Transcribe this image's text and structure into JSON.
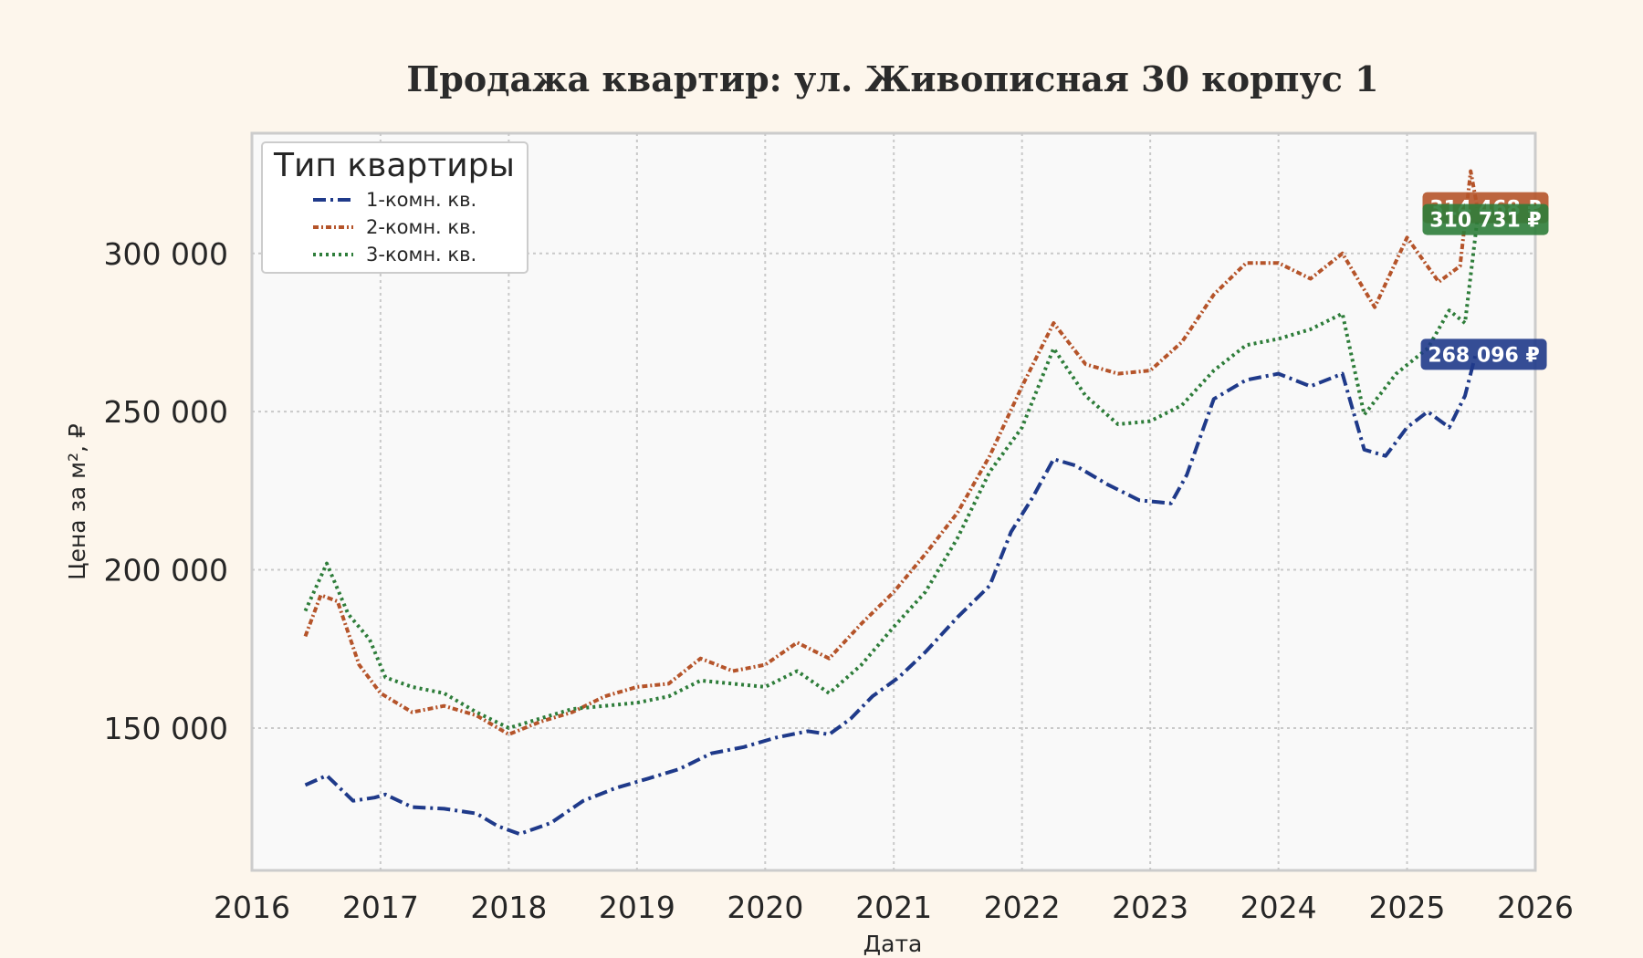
{
  "chart_data": {
    "type": "line",
    "title": "Продажа квартир: ул. Живописная 30 корпус 1",
    "xlabel": "Дата",
    "ylabel": "Цена за м², ₽",
    "xlim": [
      "2016-01-01",
      "2026-01-01"
    ],
    "ylim": [
      105000,
      338000
    ],
    "x_ticks": [
      "2016",
      "2017",
      "2018",
      "2019",
      "2020",
      "2021",
      "2022",
      "2023",
      "2024",
      "2025",
      "2026"
    ],
    "y_ticks": [
      {
        "value": 150000,
        "label": "150 000"
      },
      {
        "value": 200000,
        "label": "200 000"
      },
      {
        "value": 250000,
        "label": "250 000"
      },
      {
        "value": 300000,
        "label": "300 000"
      }
    ],
    "grid": true,
    "legend": {
      "title": "Тип квартиры",
      "position": "top-left"
    },
    "series": [
      {
        "name": "1-комн. кв.",
        "color": "#1f3a8a",
        "dash": "dashdot",
        "end_label": "268 096 ₽",
        "points": [
          [
            "2016-06-01",
            132000
          ],
          [
            "2016-08-01",
            135000
          ],
          [
            "2016-10-15",
            127000
          ],
          [
            "2016-12-15",
            128000
          ],
          [
            "2017-01-15",
            129000
          ],
          [
            "2017-04-01",
            125000
          ],
          [
            "2017-07-01",
            124500
          ],
          [
            "2017-10-01",
            123000
          ],
          [
            "2017-12-01",
            119000
          ],
          [
            "2018-02-01",
            116500
          ],
          [
            "2018-05-01",
            120000
          ],
          [
            "2018-08-01",
            127000
          ],
          [
            "2018-11-01",
            131000
          ],
          [
            "2019-02-01",
            134000
          ],
          [
            "2019-05-01",
            137000
          ],
          [
            "2019-08-01",
            142000
          ],
          [
            "2019-11-01",
            144000
          ],
          [
            "2020-02-01",
            147000
          ],
          [
            "2020-05-01",
            149000
          ],
          [
            "2020-07-01",
            148000
          ],
          [
            "2020-09-01",
            153000
          ],
          [
            "2020-11-01",
            160000
          ],
          [
            "2021-01-15",
            166000
          ],
          [
            "2021-04-01",
            174000
          ],
          [
            "2021-07-01",
            185000
          ],
          [
            "2021-10-01",
            195000
          ],
          [
            "2021-12-01",
            212000
          ],
          [
            "2022-02-01",
            223000
          ],
          [
            "2022-04-01",
            235000
          ],
          [
            "2022-06-01",
            233000
          ],
          [
            "2022-09-01",
            227000
          ],
          [
            "2022-12-01",
            222000
          ],
          [
            "2023-03-01",
            221000
          ],
          [
            "2023-04-15",
            230000
          ],
          [
            "2023-07-01",
            254000
          ],
          [
            "2023-10-01",
            260000
          ],
          [
            "2024-01-01",
            262000
          ],
          [
            "2024-04-01",
            258000
          ],
          [
            "2024-07-01",
            262000
          ],
          [
            "2024-09-01",
            238000
          ],
          [
            "2024-11-01",
            236000
          ],
          [
            "2025-01-01",
            245000
          ],
          [
            "2025-03-01",
            250000
          ],
          [
            "2025-05-01",
            245000
          ],
          [
            "2025-06-15",
            255000
          ],
          [
            "2025-07-15",
            268096
          ]
        ]
      },
      {
        "name": "2-комн. кв.",
        "color": "#b5542a",
        "dash": "dashdot-small",
        "end_label": "314 468 ₽",
        "points": [
          [
            "2016-06-01",
            179000
          ],
          [
            "2016-07-15",
            192000
          ],
          [
            "2016-09-01",
            190000
          ],
          [
            "2016-11-01",
            170000
          ],
          [
            "2017-01-01",
            161000
          ],
          [
            "2017-04-01",
            155000
          ],
          [
            "2017-07-01",
            157000
          ],
          [
            "2017-10-01",
            154000
          ],
          [
            "2018-01-01",
            148000
          ],
          [
            "2018-04-01",
            152000
          ],
          [
            "2018-07-01",
            155000
          ],
          [
            "2018-10-01",
            160000
          ],
          [
            "2019-01-01",
            163000
          ],
          [
            "2019-04-01",
            164000
          ],
          [
            "2019-07-01",
            172000
          ],
          [
            "2019-10-01",
            168000
          ],
          [
            "2020-01-01",
            170000
          ],
          [
            "2020-04-01",
            177000
          ],
          [
            "2020-07-01",
            172000
          ],
          [
            "2020-10-01",
            183000
          ],
          [
            "2021-01-01",
            193000
          ],
          [
            "2021-04-01",
            205000
          ],
          [
            "2021-07-01",
            218000
          ],
          [
            "2021-10-01",
            236000
          ],
          [
            "2022-01-01",
            258000
          ],
          [
            "2022-04-01",
            278000
          ],
          [
            "2022-07-01",
            265000
          ],
          [
            "2022-10-01",
            262000
          ],
          [
            "2023-01-01",
            263000
          ],
          [
            "2023-04-01",
            272000
          ],
          [
            "2023-07-01",
            287000
          ],
          [
            "2023-10-01",
            297000
          ],
          [
            "2024-01-01",
            297000
          ],
          [
            "2024-04-01",
            292000
          ],
          [
            "2024-07-01",
            300000
          ],
          [
            "2024-10-01",
            283000
          ],
          [
            "2025-01-01",
            305000
          ],
          [
            "2025-04-01",
            291000
          ],
          [
            "2025-06-01",
            296000
          ],
          [
            "2025-07-01",
            326000
          ],
          [
            "2025-07-20",
            314468
          ]
        ]
      },
      {
        "name": "3-комн. кв.",
        "color": "#2e7d3a",
        "dash": "dotted",
        "end_label": "310 731 ₽",
        "points": [
          [
            "2016-06-01",
            187000
          ],
          [
            "2016-08-01",
            202000
          ],
          [
            "2016-10-01",
            186000
          ],
          [
            "2016-12-01",
            178000
          ],
          [
            "2017-01-15",
            166000
          ],
          [
            "2017-04-01",
            163000
          ],
          [
            "2017-07-01",
            161000
          ],
          [
            "2017-10-01",
            155000
          ],
          [
            "2018-01-01",
            150000
          ],
          [
            "2018-04-01",
            153000
          ],
          [
            "2018-07-01",
            156000
          ],
          [
            "2018-10-01",
            157000
          ],
          [
            "2019-01-01",
            158000
          ],
          [
            "2019-04-01",
            160000
          ],
          [
            "2019-07-01",
            165000
          ],
          [
            "2019-10-01",
            164000
          ],
          [
            "2020-01-01",
            163000
          ],
          [
            "2020-04-01",
            168000
          ],
          [
            "2020-07-01",
            161000
          ],
          [
            "2020-10-01",
            170000
          ],
          [
            "2021-01-01",
            182000
          ],
          [
            "2021-04-01",
            193000
          ],
          [
            "2021-07-01",
            210000
          ],
          [
            "2021-10-01",
            231000
          ],
          [
            "2022-01-01",
            245000
          ],
          [
            "2022-04-01",
            270000
          ],
          [
            "2022-07-01",
            255000
          ],
          [
            "2022-10-01",
            246000
          ],
          [
            "2023-01-01",
            247000
          ],
          [
            "2023-04-01",
            252000
          ],
          [
            "2023-07-01",
            263000
          ],
          [
            "2023-10-01",
            271000
          ],
          [
            "2024-01-01",
            273000
          ],
          [
            "2024-04-01",
            276000
          ],
          [
            "2024-07-01",
            281000
          ],
          [
            "2024-09-01",
            249000
          ],
          [
            "2024-12-01",
            262000
          ],
          [
            "2025-03-01",
            270000
          ],
          [
            "2025-05-01",
            282000
          ],
          [
            "2025-06-15",
            278000
          ],
          [
            "2025-07-20",
            310731
          ]
        ]
      }
    ]
  }
}
